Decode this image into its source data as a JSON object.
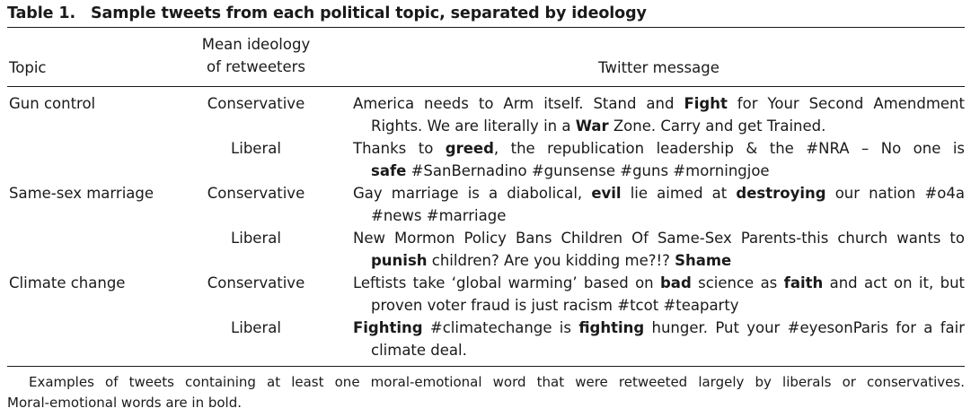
{
  "caption": {
    "number": "Table 1.",
    "title": "Sample tweets from each political topic, separated by ideology"
  },
  "header": {
    "topic": "Topic",
    "ideology_line1": "Mean ideology",
    "ideology_line2": "of retweeters",
    "message": "Twitter message"
  },
  "rows": [
    {
      "topic": "Gun control",
      "ideology": "Conservative",
      "lines": [
        [
          {
            "t": "America needs to Arm itself. Stand and "
          },
          {
            "t": "Fight",
            "b": true
          },
          {
            "t": " for Your Second Amendment"
          }
        ],
        [
          {
            "t": "Rights. We are literally in a "
          },
          {
            "t": "War",
            "b": true
          },
          {
            "t": " Zone. Carry and get Trained."
          }
        ]
      ]
    },
    {
      "topic": "",
      "ideology": "Liberal",
      "lines": [
        [
          {
            "t": "Thanks to "
          },
          {
            "t": "greed",
            "b": true
          },
          {
            "t": ", the republication leadership & the #NRA – No one is"
          }
        ],
        [
          {
            "t": "safe",
            "b": true
          },
          {
            "t": " #SanBernadino #gunsense #guns #morningjoe"
          }
        ]
      ]
    },
    {
      "topic": "Same-sex marriage",
      "ideology": "Conservative",
      "lines": [
        [
          {
            "t": "Gay marriage is a diabolical, "
          },
          {
            "t": "evil",
            "b": true
          },
          {
            "t": " lie aimed at "
          },
          {
            "t": "destroying",
            "b": true
          },
          {
            "t": " our nation #o4a"
          }
        ],
        [
          {
            "t": "#news #marriage"
          }
        ]
      ]
    },
    {
      "topic": "",
      "ideology": "Liberal",
      "lines": [
        [
          {
            "t": "New Mormon Policy Bans Children Of Same-Sex Parents-this church wants to"
          }
        ],
        [
          {
            "t": "punish",
            "b": true
          },
          {
            "t": " children? Are you kidding me?!? "
          },
          {
            "t": "Shame",
            "b": true
          }
        ]
      ]
    },
    {
      "topic": "Climate change",
      "ideology": "Conservative",
      "lines": [
        [
          {
            "t": "Leftists take ‘global warming’ based on "
          },
          {
            "t": "bad",
            "b": true
          },
          {
            "t": " science as "
          },
          {
            "t": "faith",
            "b": true
          },
          {
            "t": " and act on it, but"
          }
        ],
        [
          {
            "t": "proven voter fraud is just racism #tcot #teaparty"
          }
        ]
      ]
    },
    {
      "topic": "",
      "ideology": "Liberal",
      "lines": [
        [
          {
            "t": "Fighting",
            "b": true
          },
          {
            "t": " #climatechange is "
          },
          {
            "t": "fighting",
            "b": true
          },
          {
            "t": " hunger. Put your #eyesonParis for a fair"
          }
        ],
        [
          {
            "t": "climate deal."
          }
        ]
      ]
    }
  ],
  "footnote": {
    "line1": "Examples of tweets containing at least one moral-emotional word that were retweeted largely by liberals or conservatives.",
    "line2": "Moral-emotional words are in bold."
  }
}
